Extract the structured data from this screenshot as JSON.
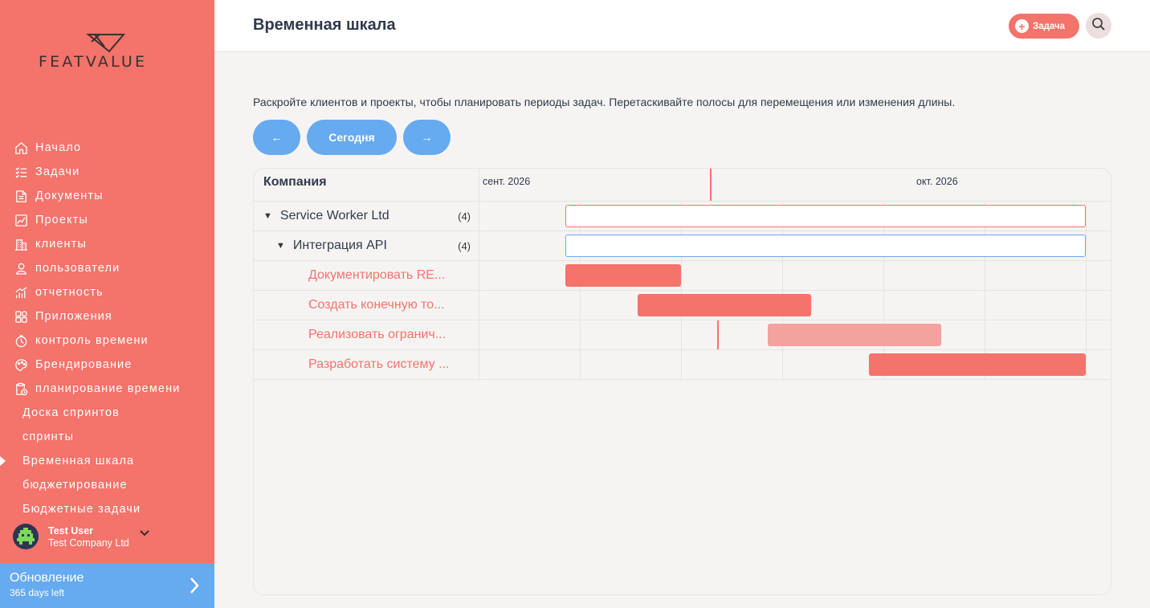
{
  "brand": {
    "name": "FEATVALUE",
    "accent": "#f4736b",
    "blue": "#66aaf0"
  },
  "sidebar": {
    "items": [
      {
        "label": "Начало",
        "icon": "home-icon"
      },
      {
        "label": "Задачи",
        "icon": "tasks-icon"
      },
      {
        "label": "Документы",
        "icon": "documents-icon"
      },
      {
        "label": "Проекты",
        "icon": "projects-icon"
      },
      {
        "label": "клиенты",
        "icon": "clients-icon"
      },
      {
        "label": "пользователи",
        "icon": "users-icon"
      },
      {
        "label": "отчетность",
        "icon": "reports-icon"
      },
      {
        "label": "Приложения",
        "icon": "apps-icon"
      },
      {
        "label": "контроль времени",
        "icon": "time-tracking-icon"
      },
      {
        "label": "Брендирование",
        "icon": "branding-icon"
      },
      {
        "label": "планирование времени",
        "icon": "time-planning-icon"
      }
    ],
    "subitems": [
      {
        "label": "Доска спринтов"
      },
      {
        "label": "спринты"
      },
      {
        "label": "Временная шкала",
        "active": true
      },
      {
        "label": "бюджетирование"
      },
      {
        "label": "Бюджетные задачи"
      }
    ],
    "user": {
      "name": "Test User",
      "company": "Test Company Ltd"
    },
    "upgrade": {
      "title": "Обновление",
      "subtitle": "365 days left"
    }
  },
  "header": {
    "title": "Временная шкала",
    "add_task_label": "Задача"
  },
  "main": {
    "hint": "Раскройте клиентов и проекты, чтобы планировать периоды задач. Перетаскивайте полосы для перемещения или изменения длины.",
    "nav": {
      "prev": "←",
      "today": "Сегодня",
      "next": "→"
    }
  },
  "gantt": {
    "column_header": "Компания",
    "months": [
      "сент. 2026",
      "окт. 2026"
    ],
    "rows": [
      {
        "type": "client",
        "label": "Service Worker Ltd",
        "count": "(4)"
      },
      {
        "type": "project",
        "label": "Интеграция API",
        "count": "(4)"
      },
      {
        "type": "task",
        "label": "Документировать RE..."
      },
      {
        "type": "task",
        "label": "Создать конечную то..."
      },
      {
        "type": "task",
        "label": "Реализовать огранич..."
      },
      {
        "type": "task",
        "label": "Разработать систему ..."
      }
    ]
  }
}
